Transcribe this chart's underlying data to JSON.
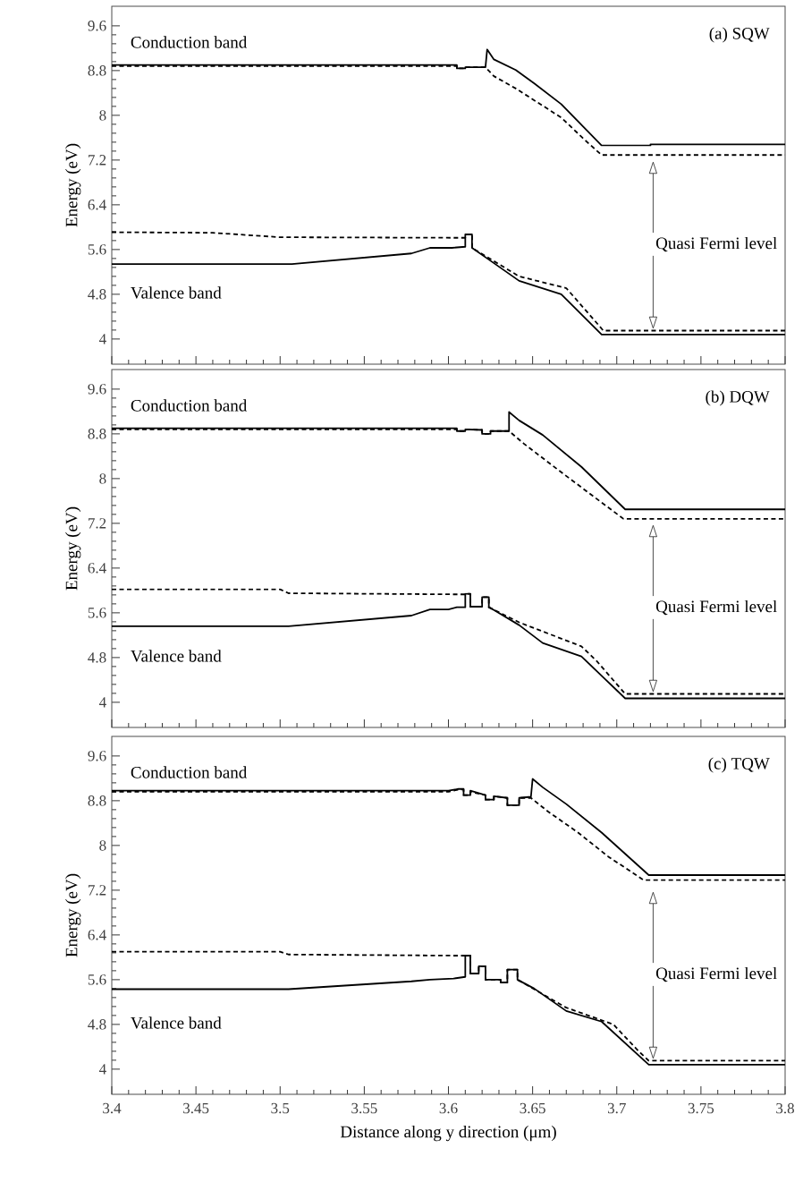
{
  "chart_data": [
    {
      "type": "line",
      "title": "(a) SQW",
      "ylabel": "Energy (eV)",
      "xlim": [
        3.4,
        3.8
      ],
      "ylim": [
        3.55,
        9.95
      ],
      "xticks": [
        3.4,
        3.45,
        3.5,
        3.55,
        3.6,
        3.65,
        3.7,
        3.75,
        3.8
      ],
      "yticks": [
        4,
        4.8,
        5.6,
        6.4,
        7.2,
        8,
        8.8,
        9.6
      ],
      "tick_labels": "y",
      "annotations": [
        "Quasi Fermi level"
      ],
      "series": [
        {
          "name": "Conduction band",
          "color": "#000000",
          "line_style": "solid",
          "x": [
            3.4,
            3.605,
            3.605,
            3.61,
            3.61,
            3.622,
            3.623,
            3.627,
            3.64,
            3.651,
            3.667,
            3.691,
            3.72,
            3.72,
            3.8
          ],
          "values": [
            8.9,
            8.9,
            8.84,
            8.84,
            8.86,
            8.86,
            9.18,
            9.0,
            8.81,
            8.57,
            8.2,
            7.46,
            7.46,
            7.48,
            7.48
          ]
        },
        {
          "color": "#000000",
          "line_style": "dashed",
          "x": [
            3.4,
            3.605,
            3.605,
            3.61,
            3.61,
            3.622,
            3.627,
            3.64,
            3.667,
            3.681,
            3.691,
            3.8
          ],
          "values": [
            8.88,
            8.88,
            8.84,
            8.84,
            8.86,
            8.86,
            8.7,
            8.48,
            7.96,
            7.56,
            7.29,
            7.29
          ]
        },
        {
          "name": "Valence band",
          "color": "#000000",
          "line_style": "solid",
          "x": [
            3.4,
            3.507,
            3.578,
            3.589,
            3.602,
            3.61,
            3.61,
            3.614,
            3.614,
            3.624,
            3.642,
            3.667,
            3.691,
            3.8
          ],
          "values": [
            5.34,
            5.34,
            5.53,
            5.63,
            5.63,
            5.65,
            5.87,
            5.87,
            5.63,
            5.42,
            5.04,
            4.8,
            4.08,
            4.08
          ]
        },
        {
          "color": "#000000",
          "line_style": "dashed",
          "x": [
            3.4,
            3.46,
            3.5,
            3.605,
            3.61,
            3.61,
            3.614,
            3.614,
            3.642,
            3.67,
            3.688,
            3.692,
            3.8
          ],
          "values": [
            5.91,
            5.9,
            5.82,
            5.81,
            5.81,
            5.87,
            5.87,
            5.63,
            5.12,
            4.91,
            4.29,
            4.15,
            4.15
          ]
        }
      ]
    },
    {
      "type": "line",
      "title": "(b) DQW",
      "ylabel": "Energy (eV)",
      "xlim": [
        3.4,
        3.8
      ],
      "ylim": [
        3.55,
        9.95
      ],
      "xticks": [
        3.4,
        3.45,
        3.5,
        3.55,
        3.6,
        3.65,
        3.7,
        3.75,
        3.8
      ],
      "yticks": [
        4,
        4.8,
        5.6,
        6.4,
        7.2,
        8,
        8.8,
        9.6
      ],
      "tick_labels": "y",
      "annotations": [
        "Quasi Fermi level"
      ],
      "series": [
        {
          "name": "Conduction band",
          "color": "#000000",
          "line_style": "solid",
          "x": [
            3.4,
            3.605,
            3.605,
            3.61,
            3.61,
            3.62,
            3.62,
            3.625,
            3.625,
            3.636,
            3.636,
            3.642,
            3.656,
            3.679,
            3.705,
            3.8
          ],
          "values": [
            8.9,
            8.9,
            8.85,
            8.85,
            8.88,
            8.87,
            8.8,
            8.8,
            8.85,
            8.85,
            9.19,
            9.04,
            8.78,
            8.21,
            7.45,
            7.45
          ]
        },
        {
          "color": "#000000",
          "line_style": "dashed",
          "x": [
            3.4,
            3.605,
            3.605,
            3.61,
            3.61,
            3.62,
            3.62,
            3.625,
            3.625,
            3.636,
            3.645,
            3.665,
            3.684,
            3.704,
            3.8
          ],
          "values": [
            8.88,
            8.88,
            8.85,
            8.85,
            8.88,
            8.87,
            8.8,
            8.8,
            8.85,
            8.85,
            8.62,
            8.16,
            7.73,
            7.28,
            7.28
          ]
        },
        {
          "name": "Valence band",
          "color": "#000000",
          "line_style": "solid",
          "x": [
            3.4,
            3.505,
            3.578,
            3.589,
            3.6,
            3.605,
            3.61,
            3.61,
            3.613,
            3.613,
            3.62,
            3.62,
            3.624,
            3.624,
            3.627,
            3.642,
            3.656,
            3.679,
            3.705,
            3.8
          ],
          "values": [
            5.36,
            5.36,
            5.55,
            5.66,
            5.66,
            5.7,
            5.7,
            5.94,
            5.94,
            5.71,
            5.71,
            5.88,
            5.88,
            5.7,
            5.65,
            5.38,
            5.06,
            4.82,
            4.07,
            4.07
          ]
        },
        {
          "color": "#000000",
          "line_style": "dashed",
          "x": [
            3.4,
            3.5,
            3.505,
            3.605,
            3.61,
            3.61,
            3.613,
            3.613,
            3.62,
            3.62,
            3.624,
            3.624,
            3.642,
            3.679,
            3.688,
            3.705,
            3.8
          ],
          "values": [
            6.02,
            6.02,
            5.95,
            5.93,
            5.93,
            5.94,
            5.94,
            5.71,
            5.71,
            5.88,
            5.88,
            5.7,
            5.43,
            5.0,
            4.74,
            4.15,
            4.15
          ]
        }
      ]
    },
    {
      "type": "line",
      "title": "(c) TQW",
      "ylabel": "Energy (eV)",
      "xlabel": "Distance along y direction (μm)",
      "xlim": [
        3.4,
        3.8
      ],
      "ylim": [
        3.55,
        9.95
      ],
      "xticks": [
        3.4,
        3.45,
        3.5,
        3.55,
        3.6,
        3.65,
        3.7,
        3.75,
        3.8
      ],
      "yticks": [
        4,
        4.8,
        5.6,
        6.4,
        7.2,
        8,
        8.8,
        9.6
      ],
      "annotations": [
        "Quasi Fermi level"
      ],
      "series": [
        {
          "name": "Conduction band",
          "color": "#000000",
          "line_style": "solid",
          "x": [
            3.4,
            3.6,
            3.606,
            3.609,
            3.609,
            3.613,
            3.613,
            3.622,
            3.622,
            3.627,
            3.627,
            3.635,
            3.635,
            3.642,
            3.642,
            3.649,
            3.65,
            3.656,
            3.67,
            3.691,
            3.719,
            3.8
          ],
          "values": [
            8.98,
            8.98,
            9.01,
            9.01,
            8.9,
            8.9,
            8.98,
            8.9,
            8.82,
            8.82,
            8.88,
            8.85,
            8.72,
            8.72,
            8.85,
            8.87,
            9.19,
            9.04,
            8.74,
            8.23,
            7.47,
            7.47
          ]
        },
        {
          "color": "#000000",
          "line_style": "dashed",
          "x": [
            3.4,
            3.6,
            3.606,
            3.609,
            3.609,
            3.613,
            3.613,
            3.622,
            3.622,
            3.627,
            3.627,
            3.635,
            3.635,
            3.642,
            3.642,
            3.649,
            3.659,
            3.677,
            3.695,
            3.716,
            3.8
          ],
          "values": [
            8.96,
            8.96,
            9.0,
            9.0,
            8.9,
            8.9,
            8.96,
            8.9,
            8.82,
            8.82,
            8.88,
            8.85,
            8.72,
            8.72,
            8.85,
            8.85,
            8.61,
            8.23,
            7.8,
            7.38,
            7.38
          ]
        },
        {
          "name": "Valence band",
          "color": "#000000",
          "line_style": "solid",
          "x": [
            3.4,
            3.505,
            3.578,
            3.589,
            3.603,
            3.61,
            3.61,
            3.613,
            3.613,
            3.618,
            3.618,
            3.622,
            3.622,
            3.631,
            3.631,
            3.635,
            3.635,
            3.641,
            3.641,
            3.651,
            3.67,
            3.691,
            3.719,
            3.8
          ],
          "values": [
            5.43,
            5.43,
            5.57,
            5.6,
            5.62,
            5.65,
            6.03,
            6.03,
            5.71,
            5.71,
            5.84,
            5.84,
            5.6,
            5.6,
            5.55,
            5.55,
            5.78,
            5.78,
            5.6,
            5.44,
            5.04,
            4.85,
            4.08,
            4.08
          ]
        },
        {
          "color": "#000000",
          "line_style": "dashed",
          "x": [
            3.4,
            3.5,
            3.505,
            3.605,
            3.61,
            3.613,
            3.613,
            3.618,
            3.618,
            3.622,
            3.622,
            3.631,
            3.631,
            3.635,
            3.635,
            3.641,
            3.641,
            3.67,
            3.698,
            3.713,
            3.719,
            3.8
          ],
          "values": [
            6.1,
            6.1,
            6.05,
            6.03,
            6.03,
            6.03,
            5.71,
            5.71,
            5.84,
            5.84,
            5.6,
            5.6,
            5.55,
            5.55,
            5.78,
            5.78,
            5.6,
            5.1,
            4.8,
            4.32,
            4.15,
            4.15
          ]
        }
      ]
    }
  ]
}
